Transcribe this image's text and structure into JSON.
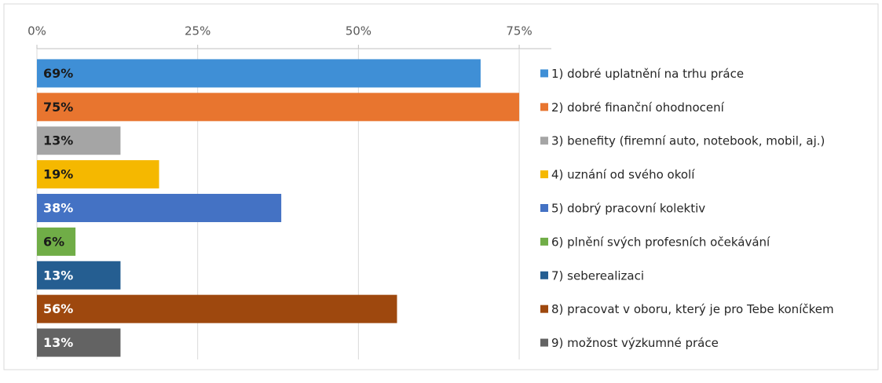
{
  "chart_data": {
    "type": "bar",
    "orientation": "horizontal",
    "categories": [
      "1) dobré uplatnění na trhu práce",
      "2) dobré finanční ohodnocení",
      "3) benefity (firemní auto, notebook, mobil, aj.)",
      "4) uznání od svého okolí",
      "5) dobrý pracovní kolektiv",
      "6) plnění svých profesních očekávání",
      "7) seberealizaci",
      "8) pracovat v oboru, který je pro Tebe koníčkem",
      "9) možnost výzkumné práce"
    ],
    "values": [
      69,
      75,
      13,
      19,
      38,
      6,
      13,
      56,
      13
    ],
    "value_labels": [
      "69%",
      "75%",
      "13%",
      "19%",
      "38%",
      "6%",
      "13%",
      "56%",
      "13%"
    ],
    "colors": [
      "#3f8fd6",
      "#e8752f",
      "#a5a5a5",
      "#f5b800",
      "#4472c4",
      "#70ad47",
      "#255e91",
      "#9e480e",
      "#636363"
    ],
    "xlim": [
      0,
      80
    ],
    "xticks": [
      {
        "value": 0,
        "label": "0%"
      },
      {
        "value": 25,
        "label": "25%"
      },
      {
        "value": 50,
        "label": "50%"
      },
      {
        "value": 75,
        "label": "75%"
      }
    ],
    "grid": true,
    "legend": "right"
  }
}
